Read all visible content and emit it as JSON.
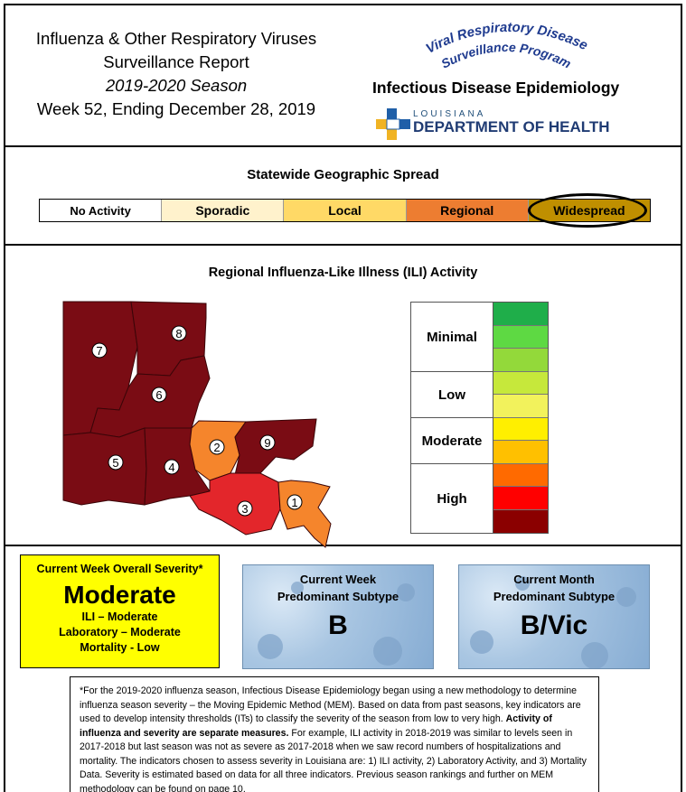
{
  "header": {
    "title_line1": "Influenza & Other Respiratory Viruses",
    "title_line2": "Surveillance Report",
    "season": "2019-2020 Season",
    "week": "Week 52, Ending December 28, 2019",
    "program_name_line1": "Viral Respiratory Disease",
    "program_name_line2": "Surveillance Program",
    "division": "Infectious Disease Epidemiology",
    "agency_state": "LOUISIANA",
    "agency": "DEPARTMENT OF HEALTH"
  },
  "spread": {
    "title": "Statewide Geographic Spread",
    "levels": [
      {
        "label": "No Activity",
        "color": "#ffffff"
      },
      {
        "label": "Sporadic",
        "color": "#fff2cc"
      },
      {
        "label": "Local",
        "color": "#ffd966"
      },
      {
        "label": "Regional",
        "color": "#ed7d31"
      },
      {
        "label": "Widespread",
        "color": "#bf8f00"
      }
    ],
    "selected": "Widespread"
  },
  "ili": {
    "title": "Regional Influenza-Like Illness (ILI) Activity",
    "regions": [
      {
        "number": "1",
        "color": "#f5852c"
      },
      {
        "number": "2",
        "color": "#f5852c"
      },
      {
        "number": "3",
        "color": "#e3262b"
      },
      {
        "number": "4",
        "color": "#7a0c14"
      },
      {
        "number": "5",
        "color": "#7a0c14"
      },
      {
        "number": "6",
        "color": "#7a0c14"
      },
      {
        "number": "7",
        "color": "#7a0c14"
      },
      {
        "number": "8",
        "color": "#7a0c14"
      },
      {
        "number": "9",
        "color": "#7a0c14"
      }
    ],
    "legend": [
      {
        "label": "Minimal"
      },
      {
        "label": "Low"
      },
      {
        "label": "Moderate"
      },
      {
        "label": "High"
      }
    ],
    "legend_colors": [
      "#1fae4a",
      "#5ed943",
      "#93d93a",
      "#c6e83b",
      "#f2f25c",
      "#ffef00",
      "#ffc000",
      "#ff6a00",
      "#ff0000",
      "#8b0000"
    ]
  },
  "severity": {
    "heading": "Current Week Overall Severity*",
    "value": "Moderate",
    "ili": "ILI – Moderate",
    "laboratory": "Laboratory – Moderate",
    "mortality": "Mortality - Low"
  },
  "subtype_week": {
    "heading_line1": "Current Week",
    "heading_line2": "Predominant Subtype",
    "value": "B"
  },
  "subtype_month": {
    "heading_line1": "Current Month",
    "heading_line2": "Predominant Subtype",
    "value": "B/Vic"
  },
  "footnote": {
    "part1": "*For the 2019-2020 influenza season, Infectious Disease Epidemiology began using a new methodology to determine influenza season severity – the Moving Epidemic Method (MEM). Based on data from past seasons, key indicators are used to develop intensity thresholds (ITs) to classify the severity of the season from low to very high. ",
    "bold": "Activity of influenza and severity are separate measures.",
    "part2": " For example, ILI activity in 2018-2019 was similar to levels seen in 2017-2018 but last season was not as severe as 2017-2018 when we saw record numbers of hospitalizations and mortality.  The indicators chosen to assess severity in Louisiana are: 1) ILI activity, 2) Laboratory Activity, and 3) Mortality Data. Severity is estimated based on data for all three indicators. Previous season rankings and further on MEM methodology can be found on page 10."
  }
}
